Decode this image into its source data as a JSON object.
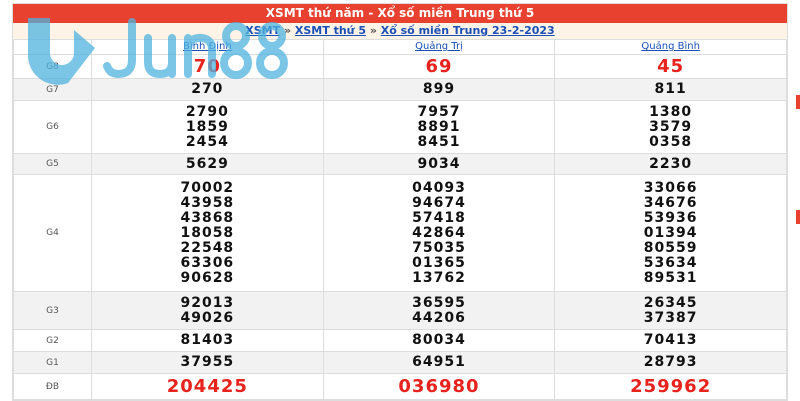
{
  "title": "XSMT thứ năm - Xổ số miền Trung thứ 5",
  "breadcrumb": [
    "XSMT",
    "XSMT thứ 5",
    "Xổ số miền Trung 23-2-2023"
  ],
  "provinces": [
    "Bình Định",
    "Quảng Trị",
    "Quảng Bình"
  ],
  "rows": [
    {
      "label": "G8",
      "values": [
        [
          "70"
        ],
        [
          "69"
        ],
        [
          "45"
        ]
      ],
      "red": true
    },
    {
      "label": "G7",
      "values": [
        [
          "270"
        ],
        [
          "899"
        ],
        [
          "811"
        ]
      ]
    },
    {
      "label": "G6",
      "values": [
        [
          "2790",
          "1859",
          "2454"
        ],
        [
          "7957",
          "8891",
          "8451"
        ],
        [
          "1380",
          "3579",
          "0358"
        ]
      ]
    },
    {
      "label": "G5",
      "values": [
        [
          "5629"
        ],
        [
          "9034"
        ],
        [
          "2230"
        ]
      ]
    },
    {
      "label": "G4",
      "values": [
        [
          "70002",
          "43958",
          "43868",
          "18058",
          "22548",
          "63306",
          "90628"
        ],
        [
          "04093",
          "94674",
          "57418",
          "42864",
          "75035",
          "01365",
          "13762"
        ],
        [
          "33066",
          "34676",
          "53936",
          "01394",
          "80559",
          "53634",
          "89531"
        ]
      ]
    },
    {
      "label": "G3",
      "values": [
        [
          "92013",
          "49026"
        ],
        [
          "36595",
          "44206"
        ],
        [
          "26345",
          "37387"
        ]
      ]
    },
    {
      "label": "G2",
      "values": [
        [
          "81403"
        ],
        [
          "80034"
        ],
        [
          "70413"
        ]
      ]
    },
    {
      "label": "G1",
      "values": [
        [
          "37955"
        ],
        [
          "64951"
        ],
        [
          "28793"
        ]
      ]
    },
    {
      "label": "ĐB",
      "values": [
        [
          "204425"
        ],
        [
          "036980"
        ],
        [
          "259962"
        ]
      ],
      "red": true
    }
  ],
  "watermark": "Jun88",
  "colors": {
    "header": "#e8412f",
    "prize": "#e8231d",
    "link": "#1a4fb8",
    "watermark": "#4fb3e0"
  }
}
